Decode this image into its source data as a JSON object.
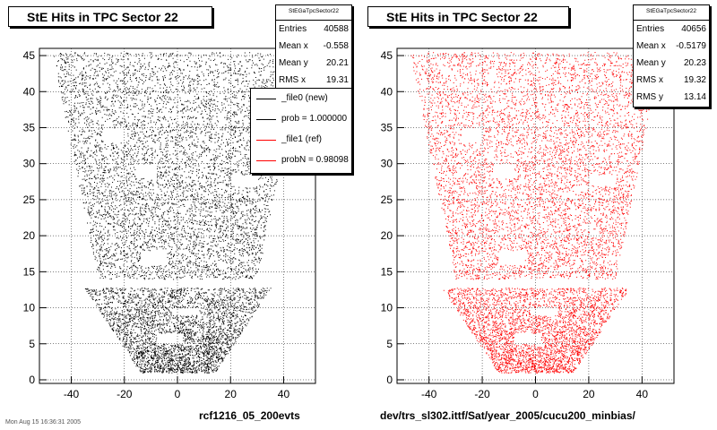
{
  "chart_data": [
    {
      "type": "scatter",
      "title": "StE Hits in TPC Sector 22",
      "marker_color": "#000000",
      "xlim": [
        -52,
        52
      ],
      "ylim": [
        -0.5,
        46
      ],
      "x_ticks": [
        -40,
        -20,
        0,
        20,
        40
      ],
      "y_ticks": [
        0,
        5,
        10,
        15,
        20,
        25,
        30,
        35,
        40,
        45
      ],
      "stats": {
        "name": "StEGaTpcSector22",
        "rows": [
          {
            "label": "Entries",
            "value": "40588"
          },
          {
            "label": "Mean x",
            "value": "-0.558"
          },
          {
            "label": "Mean y",
            "value": "20.21"
          },
          {
            "label": "RMS x",
            "value": "19.31"
          }
        ]
      },
      "legend": [
        {
          "label": "_file0 (new)",
          "color": "#000000"
        },
        {
          "label": "prob = 1.000000",
          "color": "#000000"
        },
        {
          "label": "_file1 (ref)",
          "color": "#ff0000"
        },
        {
          "label": "probN = 0.98098",
          "color": "#ff0000"
        }
      ],
      "footer": "rcf1216_05_200evts"
    },
    {
      "type": "scatter",
      "title": "StE Hits in TPC Sector 22",
      "marker_color": "#ff0000",
      "xlim": [
        -52,
        52
      ],
      "ylim": [
        -0.5,
        46
      ],
      "x_ticks": [
        -40,
        -20,
        0,
        20,
        40
      ],
      "y_ticks": [
        0,
        5,
        10,
        15,
        20,
        25,
        30,
        35,
        40,
        45
      ],
      "stats": {
        "name": "StEGaTpcSector22",
        "rows": [
          {
            "label": "Entries",
            "value": "40656"
          },
          {
            "label": "Mean x",
            "value": "-0.5179"
          },
          {
            "label": "Mean y",
            "value": "20.23"
          },
          {
            "label": "RMS x",
            "value": "19.32"
          },
          {
            "label": "RMS y",
            "value": "13.14"
          }
        ]
      },
      "footer": "dev/trs_sl302.ittf/Sat/year_2005/cucu200_minbias/"
    }
  ],
  "corner_note": "Mon Aug 15 16:36:31 2005"
}
